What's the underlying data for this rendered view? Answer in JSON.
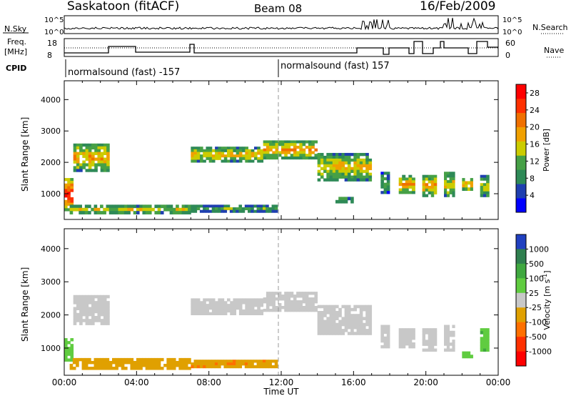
{
  "header": {
    "title": "Saskatoon (fitACF)",
    "beam": "Beam 08",
    "date": "16/Feb/2009"
  },
  "top_panels": {
    "nsky_label": "N.Sky",
    "nsky_ticks": [
      "10^5",
      "10^0"
    ],
    "nsearch_label": "N.Search",
    "freq_label": "Freq.",
    "freq_unit": "[MHz]",
    "freq_ticks": [
      "18",
      "8"
    ],
    "nave_label": "Nave",
    "nave_ticks": [
      "60",
      "0"
    ],
    "cpid_label": "CPID",
    "cpid_segments": [
      "normalsound (fast) -157",
      "normalsound (fast) 157"
    ]
  },
  "chart_data": [
    {
      "type": "heatmap",
      "title": "",
      "xlabel": "",
      "ylabel": "Slant Range [km]",
      "xlim": [
        "00:00",
        "24:00"
      ],
      "ylim": [
        180,
        4600
      ],
      "x_ticks": [
        "00:00",
        "04:00",
        "08:00",
        "12:00",
        "16:00",
        "20:00",
        "00:00"
      ],
      "y_ticks": [
        1000,
        2000,
        3000,
        4000
      ],
      "colorbar": {
        "label": "Power [dB]",
        "ticks": [
          4,
          8,
          12,
          16,
          20,
          24,
          28
        ],
        "range": [
          0,
          30
        ],
        "colors": [
          "#0000ff",
          "#1f3fb0",
          "#2e8a57",
          "#46a046",
          "#cccc00",
          "#f0a000",
          "#f07000",
          "#ff3000",
          "#ff0000"
        ]
      },
      "bands": [
        {
          "t0": 0.0,
          "t1": 0.5,
          "r0": 450,
          "r1": 1500,
          "value": 26
        },
        {
          "t0": 0.5,
          "t1": 2.5,
          "r0": 1700,
          "r1": 2600,
          "value": 18
        },
        {
          "t0": 0.3,
          "t1": 7.0,
          "r0": 350,
          "r1": 650,
          "value": 14
        },
        {
          "t0": 7.0,
          "t1": 11.8,
          "r0": 400,
          "r1": 650,
          "value": 10
        },
        {
          "t0": 7.0,
          "t1": 11.0,
          "r0": 2000,
          "r1": 2500,
          "value": 16
        },
        {
          "t0": 11.0,
          "t1": 14.0,
          "r0": 2100,
          "r1": 2700,
          "value": 18
        },
        {
          "t0": 14.0,
          "t1": 17.0,
          "r0": 1400,
          "r1": 2300,
          "value": 16
        },
        {
          "t0": 15.0,
          "t1": 16.0,
          "r0": 700,
          "r1": 900,
          "value": 10
        },
        {
          "t0": 17.5,
          "t1": 18.0,
          "r0": 1000,
          "r1": 1700,
          "value": 10
        },
        {
          "t0": 18.5,
          "t1": 19.4,
          "r0": 1000,
          "r1": 1600,
          "value": 18
        },
        {
          "t0": 19.8,
          "t1": 20.6,
          "r0": 900,
          "r1": 1600,
          "value": 18
        },
        {
          "t0": 21.0,
          "t1": 21.6,
          "r0": 900,
          "r1": 1700,
          "value": 16
        },
        {
          "t0": 22.0,
          "t1": 22.6,
          "r0": 1100,
          "r1": 1500,
          "value": 18
        },
        {
          "t0": 23.0,
          "t1": 23.5,
          "r0": 900,
          "r1": 1600,
          "value": 14
        }
      ]
    },
    {
      "type": "heatmap",
      "title": "",
      "xlabel": "Time UT",
      "ylabel": "Slant Range [km]",
      "xlim": [
        "00:00",
        "24:00"
      ],
      "ylim": [
        180,
        4600
      ],
      "x_ticks": [
        "00:00",
        "04:00",
        "08:00",
        "12:00",
        "16:00",
        "20:00",
        "00:00"
      ],
      "y_ticks": [
        1000,
        2000,
        3000,
        4000
      ],
      "colorbar": {
        "label": "Velocity [m s",
        "label_sup": "-1",
        "label_end": "]",
        "ticks": [
          1000,
          500,
          100,
          25,
          -25,
          -100,
          -500,
          -1000
        ],
        "colors": [
          "#2040c0",
          "#2f7f4f",
          "#40a840",
          "#60cc40",
          "#c8c8c8",
          "#e0a000",
          "#ff7000",
          "#ff3000",
          "#ff0000"
        ]
      },
      "bands": [
        {
          "t0": 0.0,
          "t1": 0.5,
          "r0": 600,
          "r1": 1300,
          "value": 60
        },
        {
          "t0": 0.5,
          "t1": 2.5,
          "r0": 1700,
          "r1": 2600,
          "value": 0
        },
        {
          "t0": 0.3,
          "t1": 7.0,
          "r0": 350,
          "r1": 700,
          "value": -60
        },
        {
          "t0": 7.0,
          "t1": 11.8,
          "r0": 400,
          "r1": 650,
          "value": -80
        },
        {
          "t0": 7.0,
          "t1": 11.0,
          "r0": 2000,
          "r1": 2500,
          "value": 0
        },
        {
          "t0": 11.0,
          "t1": 14.0,
          "r0": 2100,
          "r1": 2700,
          "value": 0
        },
        {
          "t0": 14.0,
          "t1": 17.0,
          "r0": 1400,
          "r1": 2300,
          "value": 0
        },
        {
          "t0": 17.5,
          "t1": 18.0,
          "r0": 1000,
          "r1": 1700,
          "value": 0
        },
        {
          "t0": 18.5,
          "t1": 19.4,
          "r0": 1000,
          "r1": 1600,
          "value": 0
        },
        {
          "t0": 19.8,
          "t1": 20.6,
          "r0": 900,
          "r1": 1600,
          "value": 0
        },
        {
          "t0": 21.0,
          "t1": 21.6,
          "r0": 900,
          "r1": 1700,
          "value": 0
        },
        {
          "t0": 22.0,
          "t1": 22.6,
          "r0": 700,
          "r1": 900,
          "value": 80
        },
        {
          "t0": 23.0,
          "t1": 23.5,
          "r0": 900,
          "r1": 1600,
          "value": 80
        }
      ]
    }
  ]
}
